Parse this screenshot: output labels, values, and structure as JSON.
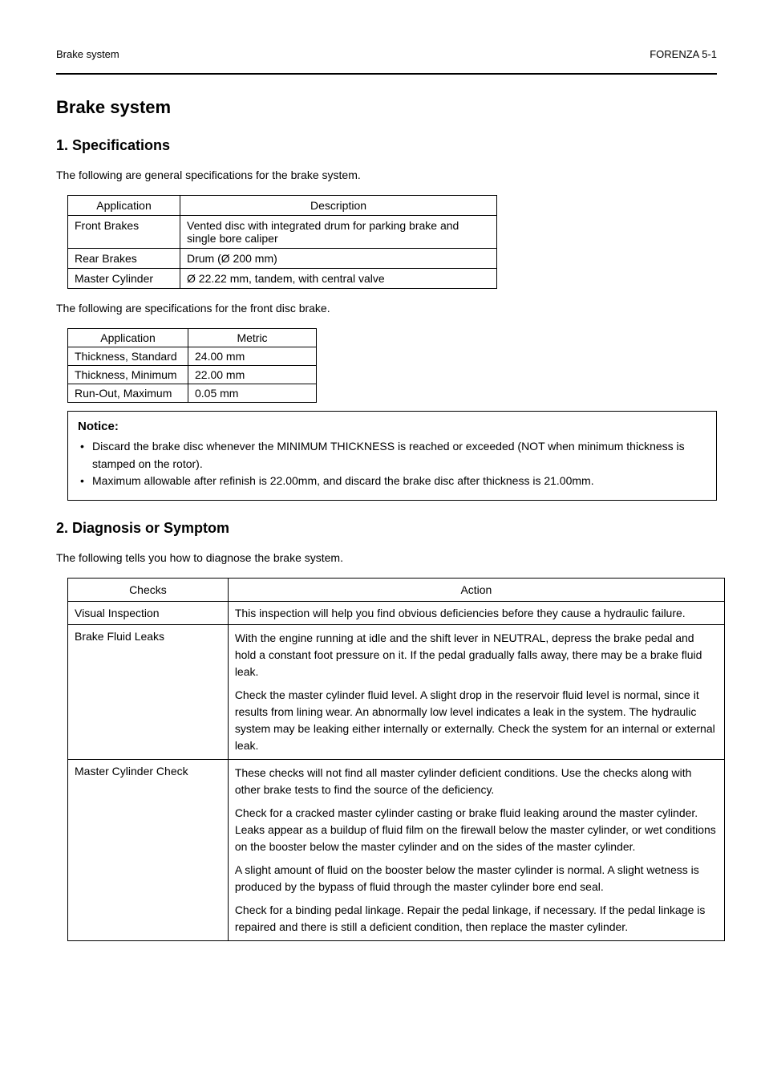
{
  "header": {
    "left": "Brake system",
    "right": "FORENZA 5-1"
  },
  "title": "Brake system",
  "s1": {
    "heading": "1. Specifications",
    "intro": "The following are general specifications for the brake system.",
    "table1": {
      "columns": [
        "Application",
        "Description"
      ],
      "rows": [
        [
          "Front Brakes",
          "Vented disc with integrated drum for parking brake and single bore caliper"
        ],
        [
          "Rear Brakes",
          "Drum (Ø 200 mm)"
        ],
        [
          "Master Cylinder",
          "Ø 22.22 mm, tandem, with central valve"
        ]
      ]
    },
    "midtext": "The following are specifications for the front disc brake.",
    "table2": {
      "columns": [
        "Application",
        "Metric"
      ],
      "rows": [
        [
          "Thickness, Standard",
          "24.00 mm"
        ],
        [
          "Thickness, Minimum",
          "22.00 mm"
        ],
        [
          "Run-Out, Maximum",
          "0.05 mm"
        ]
      ]
    },
    "notebox": {
      "title": "Notice:",
      "items": [
        "Discard the brake disc whenever the MINIMUM THICKNESS is reached or exceeded (NOT when minimum thickness is stamped on the rotor).",
        "Maximum allowable after refinish is 22.00mm, and discard the brake disc after thickness is 21.00mm."
      ]
    }
  },
  "s2": {
    "heading": "2. Diagnosis or Symptom",
    "intro": "The following tells you how to diagnose the brake system.",
    "table3": {
      "columns": [
        "Checks",
        "Action"
      ],
      "rows": [
        [
          "Visual Inspection",
          "This inspection will help you find obvious deficiencies before they cause a hydraulic failure."
        ],
        [
          "Brake Fluid Leaks",
          [
            "With the engine running at idle and the shift lever in NEUTRAL, depress the brake pedal and hold a constant foot pressure on it. If the pedal gradually falls away, there may be a brake fluid leak.",
            "Check the master cylinder fluid level. A slight drop in the reservoir fluid level is normal, since it results from lining wear. An abnormally low level indicates a leak in the system. The hydraulic system may be leaking either internally or externally. Check the system for an internal or external leak."
          ]
        ],
        [
          "Master Cylinder Check",
          [
            "These checks will not find all master cylinder deficient conditions. Use the checks along with other brake tests to find the source of the deficiency.",
            "Check for a cracked master cylinder casting or brake fluid leaking around the master cylinder. Leaks appear as a buildup of fluid film on the firewall below the master cylinder, or wet conditions on the booster below the master cylinder and on the sides of the master cylinder.",
            "A slight amount of fluid on the booster below the master cylinder is normal. A slight wetness is produced by the bypass of fluid through the master cylinder bore end seal.",
            "Check for a binding pedal linkage. Repair the pedal linkage, if necessary. If the pedal linkage is repaired and there is still a deficient condition, then replace the master cylinder."
          ]
        ]
      ]
    }
  }
}
